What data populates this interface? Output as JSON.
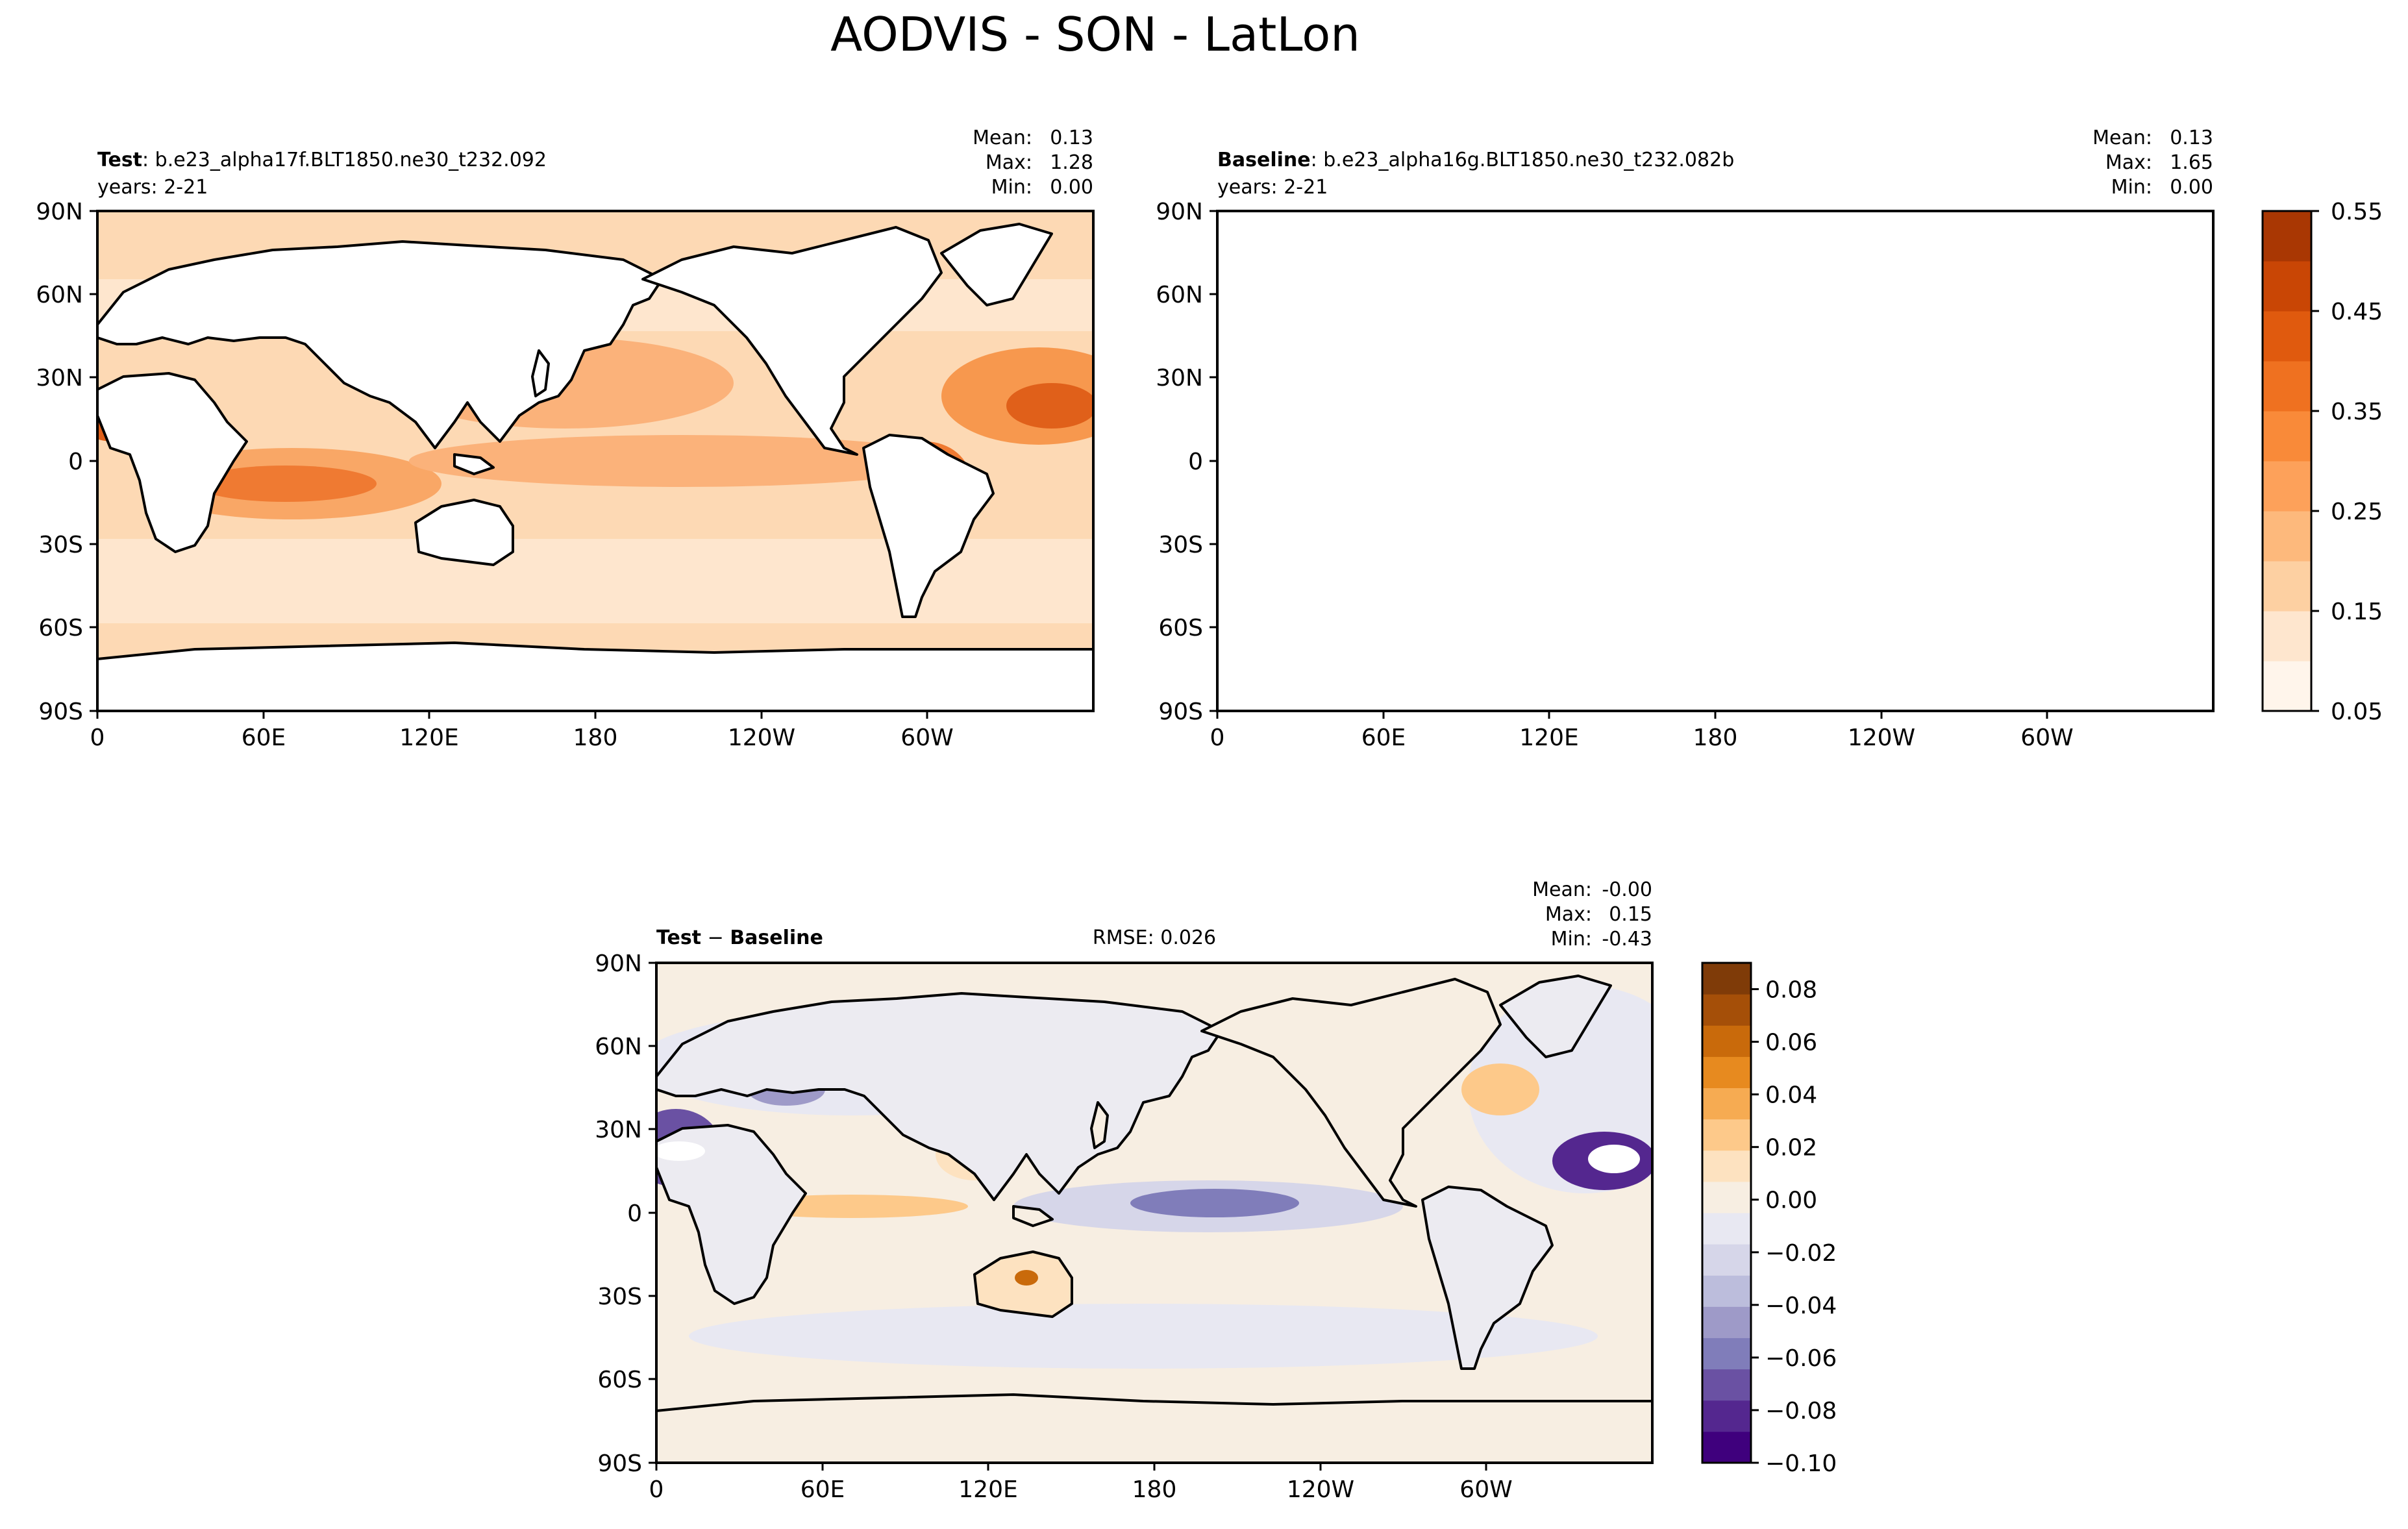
{
  "title": "AODVIS - SON - LatLon",
  "colors": {
    "seq_scale": [
      "#fff5eb",
      "#fee6ce",
      "#fdd0a2",
      "#fdb97c",
      "#fda15a",
      "#f98a39",
      "#ef7120",
      "#e05a0e",
      "#c94605",
      "#a93703",
      "#8a2c04"
    ],
    "div_neg": [
      "#3f007d",
      "#54278f",
      "#6a51a3",
      "#807dba",
      "#9e9ac8",
      "#bcbddc",
      "#d6d6e9",
      "#e8e8f2"
    ],
    "div_pos": [
      "#f7eee2",
      "#fde2c0",
      "#fdc98a",
      "#f6ab52",
      "#e78a1f",
      "#c96a0b",
      "#a54f08",
      "#7f3b08"
    ],
    "land": "#ffffff"
  },
  "chart_data": [
    {
      "type": "heatmap",
      "label_bold": "Test",
      "label_rest": ": b.e23_alpha17f.BLT1850.ne30_t232.092",
      "subtitle": "years: 2-21",
      "stats": [
        {
          "label": "Mean:",
          "value": "0.13"
        },
        {
          "label": "Max:",
          "value": "1.28"
        },
        {
          "label": "Min:",
          "value": "0.00"
        }
      ],
      "x_ticks": [
        "0",
        "60E",
        "120E",
        "180",
        "120W",
        "60W"
      ],
      "y_ticks": [
        "90N",
        "60N",
        "30N",
        "0",
        "30S",
        "60S",
        "90S"
      ],
      "xlim": [
        0,
        360
      ],
      "ylim": [
        -90,
        90
      ],
      "colormap": "Oranges"
    },
    {
      "type": "heatmap",
      "label_bold": "Baseline",
      "label_rest": ": b.e23_alpha16g.BLT1850.ne30_t232.082b",
      "subtitle": "years: 2-21",
      "stats": [
        {
          "label": "Mean:",
          "value": "0.13"
        },
        {
          "label": "Max:",
          "value": "1.65"
        },
        {
          "label": "Min:",
          "value": "0.00"
        }
      ],
      "x_ticks": [
        "0",
        "60E",
        "120E",
        "180",
        "120W",
        "60W"
      ],
      "y_ticks": [
        "90N",
        "60N",
        "30N",
        "0",
        "30S",
        "60S",
        "90S"
      ],
      "xlim": [
        0,
        360
      ],
      "ylim": [
        -90,
        90
      ],
      "colormap": "Oranges",
      "colorbar": {
        "levels": [
          0.05,
          0.1,
          0.15,
          0.2,
          0.25,
          0.3,
          0.35,
          0.4,
          0.45,
          0.5,
          0.55
        ],
        "tick_labels": [
          "0.55",
          "0.45",
          "0.35",
          "0.25",
          "0.15",
          "0.05"
        ]
      }
    },
    {
      "type": "heatmap",
      "label_bold": "Test",
      "label_mid": " − ",
      "label_bold2": "Baseline",
      "rmse": "RMSE: 0.026",
      "stats": [
        {
          "label": "Mean:",
          "value": "-0.00"
        },
        {
          "label": "Max:",
          "value": " 0.15"
        },
        {
          "label": "Min:",
          "value": "-0.43"
        }
      ],
      "x_ticks": [
        "0",
        "60E",
        "120E",
        "180",
        "120W",
        "60W"
      ],
      "y_ticks": [
        "90N",
        "60N",
        "30N",
        "0",
        "30S",
        "60S",
        "90S"
      ],
      "xlim": [
        0,
        360
      ],
      "ylim": [
        -90,
        90
      ],
      "colormap": "PuOr",
      "colorbar": {
        "levels": [
          -0.1,
          0.09
        ],
        "tick_labels": [
          "0.08",
          "0.06",
          "0.04",
          "0.02",
          "0.00",
          "−0.02",
          "−0.04",
          "−0.06",
          "−0.08",
          "−0.10"
        ]
      }
    }
  ]
}
